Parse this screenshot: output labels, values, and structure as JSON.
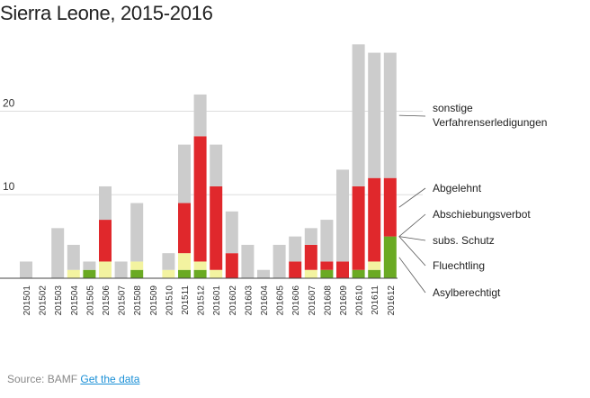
{
  "chart_data": {
    "type": "bar",
    "stacked": true,
    "title": "Sierra Leone, 2015-2016",
    "xlabel": "",
    "ylabel": "",
    "ylim": [
      0,
      29
    ],
    "yticks": [
      10,
      20
    ],
    "grid": true,
    "categories": [
      "201501",
      "201502",
      "201503",
      "201504",
      "201505",
      "201506",
      "201507",
      "201508",
      "201509",
      "201510",
      "201511",
      "201512",
      "201601",
      "201602",
      "201603",
      "201604",
      "201605",
      "201606",
      "201607",
      "201608",
      "201609",
      "201610",
      "201611",
      "201612"
    ],
    "series": [
      {
        "name": "Asylberechtigt",
        "color": "#6aaa23",
        "values": [
          0,
          0,
          0,
          0,
          1,
          0,
          0,
          1,
          0,
          0,
          1,
          1,
          0,
          0,
          0,
          0,
          0,
          0,
          0,
          1,
          0,
          1,
          1,
          5
        ]
      },
      {
        "name": "Fluechtling",
        "color": "#f3f3a0",
        "values": [
          0,
          0,
          0,
          1,
          0,
          2,
          0,
          1,
          0,
          1,
          2,
          1,
          1,
          0,
          0,
          0,
          0,
          0,
          1,
          0,
          0,
          0,
          1,
          0
        ]
      },
      {
        "name": "subs. Schutz",
        "color": "#f0a0a0",
        "values": [
          0,
          0,
          0,
          0,
          0,
          0,
          0,
          0,
          0,
          0,
          0,
          0,
          0,
          0,
          0,
          0,
          0,
          0,
          0,
          0,
          0,
          0,
          0,
          0
        ]
      },
      {
        "name": "Abschiebungsverbot",
        "color": "#e89090",
        "values": [
          0,
          0,
          0,
          0,
          0,
          0,
          0,
          0,
          0,
          0,
          0,
          0,
          0,
          0,
          0,
          0,
          0,
          0,
          0,
          0,
          0,
          0,
          0,
          0
        ]
      },
      {
        "name": "Abgelehnt",
        "color": "#e0282c",
        "values": [
          0,
          0,
          0,
          0,
          0,
          5,
          0,
          0,
          0,
          0,
          6,
          15,
          10,
          3,
          0,
          0,
          0,
          2,
          3,
          1,
          2,
          10,
          10,
          7
        ]
      },
      {
        "name": "sonstige Verfahrenserledigungen",
        "color": "#cccccc",
        "values": [
          2,
          0,
          6,
          3,
          1,
          4,
          2,
          7,
          0,
          2,
          7,
          5,
          5,
          5,
          4,
          1,
          4,
          3,
          2,
          5,
          11,
          17,
          15,
          15
        ]
      }
    ],
    "legend_labels": [
      {
        "name": "sonstige",
        "line2": "Verfahrenserledigungen",
        "series": 5
      },
      {
        "name": "Abgelehnt",
        "series": 4
      },
      {
        "name": "Abschiebungsverbot",
        "series": 3
      },
      {
        "name": "subs. Schutz",
        "series": 2
      },
      {
        "name": "Fluechtling",
        "series": 1
      },
      {
        "name": "Asylberechtigt",
        "series": 0
      }
    ]
  },
  "footer": {
    "source_label": "Source: BAMF",
    "link_label": "Get the data"
  }
}
